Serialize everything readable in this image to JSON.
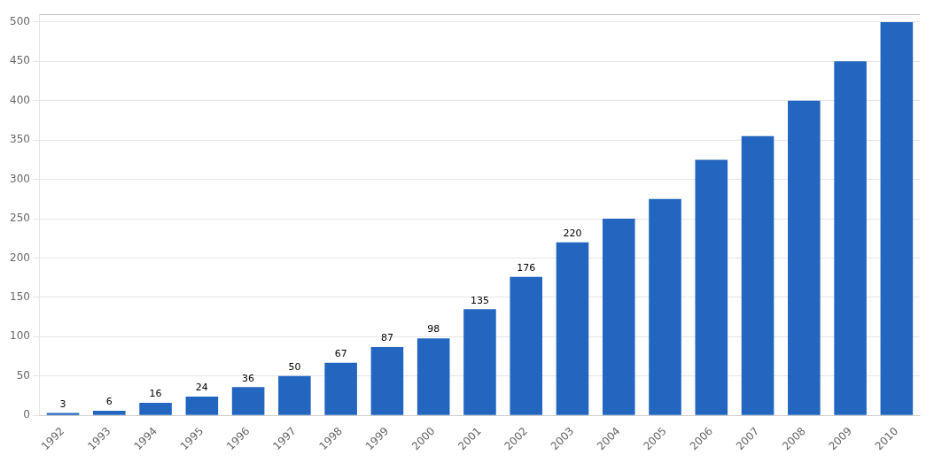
{
  "chart_data": {
    "type": "bar",
    "categories": [
      "1992",
      "1993",
      "1994",
      "1995",
      "1996",
      "1997",
      "1998",
      "1999",
      "2000",
      "2001",
      "2002",
      "2003",
      "2004",
      "2005",
      "2006",
      "2007",
      "2008",
      "2009",
      "2010"
    ],
    "values": [
      3,
      6,
      16,
      24,
      36,
      50,
      67,
      87,
      98,
      135,
      176,
      220,
      250,
      275,
      325,
      355,
      400,
      450,
      500
    ],
    "value_labels": [
      "3",
      "6",
      "16",
      "24",
      "36",
      "50",
      "67",
      "87",
      "98",
      "135",
      "176",
      "220",
      null,
      null,
      null,
      null,
      null,
      null,
      null
    ],
    "data_labels": true,
    "color": "#2366C0",
    "ylim": [
      0,
      510
    ],
    "yticks": [
      0,
      50,
      100,
      150,
      200,
      250,
      300,
      350,
      400,
      450,
      500
    ],
    "grid": true
  }
}
